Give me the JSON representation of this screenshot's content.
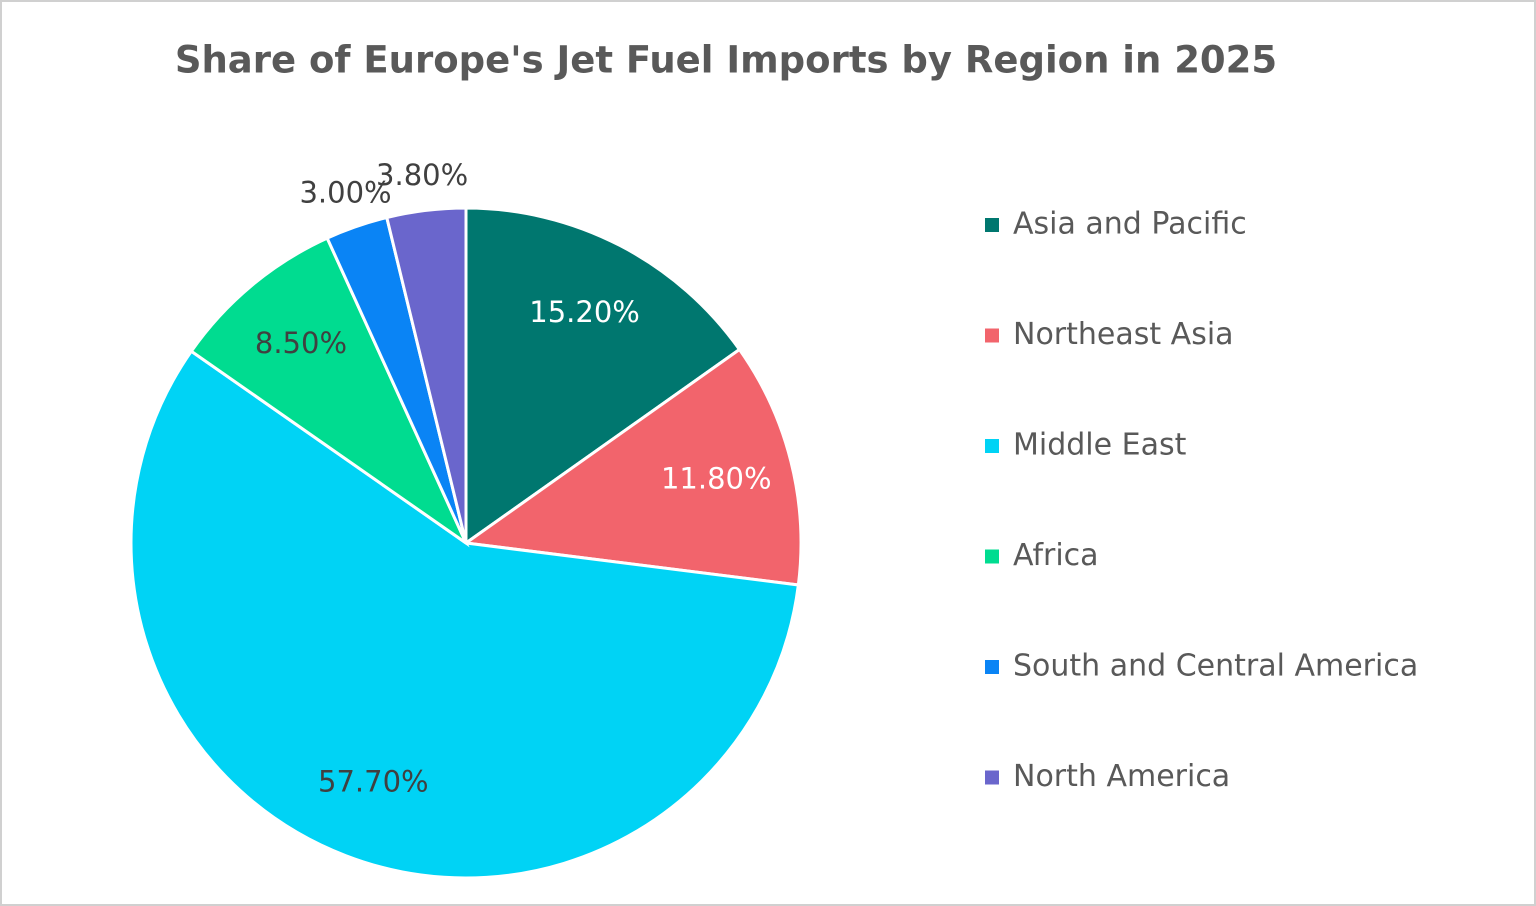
{
  "chart_data": {
    "type": "pie",
    "title": "Share of Europe's Jet Fuel Imports by Region in 2025",
    "categories": [
      "Asia and Pacific",
      "Northeast Asia",
      "Middle East",
      "Africa",
      "South and Central America",
      "North America"
    ],
    "values": [
      15.2,
      11.8,
      57.7,
      8.5,
      3.0,
      3.8
    ],
    "value_labels": [
      "15.20%",
      "11.80%",
      "57.70%",
      "8.50%",
      "3.00%",
      "3.80%"
    ],
    "colors": [
      "#00776F",
      "#F2646C",
      "#00D3F5",
      "#00DC90",
      "#0A84F5",
      "#6A66CC"
    ],
    "label_colors": [
      "#ffffff",
      "#ffffff",
      "#404040",
      "#404040",
      "#404040",
      "#404040"
    ],
    "legend": "right"
  }
}
